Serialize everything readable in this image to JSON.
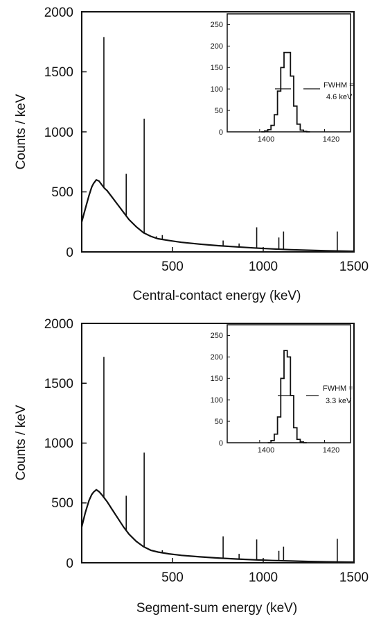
{
  "chart_data": [
    {
      "type": "line",
      "xlabel": "Central-contact energy (keV)",
      "ylabel": "Counts / keV",
      "xlim": [
        0,
        1500
      ],
      "ylim": [
        0,
        2000
      ],
      "xticks": [
        "500",
        "1000",
        "1500"
      ],
      "xtick_values": [
        500,
        1000,
        1500
      ],
      "yticks": [
        "0",
        "500",
        "1000",
        "1500",
        "2000"
      ],
      "ytick_values": [
        0,
        500,
        1000,
        1500,
        2000
      ],
      "continuum": {
        "x": [
          0,
          20,
          40,
          55,
          65,
          80,
          95,
          110,
          125,
          140,
          170,
          200,
          230,
          260,
          300,
          340,
          380,
          420,
          480,
          550,
          650,
          750,
          850,
          950,
          1050,
          1150,
          1250,
          1350,
          1450,
          1500
        ],
        "y": [
          250,
          360,
          470,
          540,
          570,
          600,
          590,
          560,
          530,
          510,
          450,
          390,
          330,
          270,
          210,
          160,
          130,
          110,
          95,
          80,
          65,
          52,
          42,
          33,
          25,
          18,
          14,
          10,
          7,
          5
        ]
      },
      "peaks": {
        "x": [
          122,
          245,
          344,
          411,
          444,
          779,
          867,
          964,
          1086,
          1112,
          1408
        ],
        "y": [
          1790,
          650,
          1110,
          130,
          140,
          95,
          70,
          205,
          120,
          170,
          170
        ]
      },
      "inset": {
        "xlim": [
          1390,
          1428
        ],
        "ylim": [
          0,
          275
        ],
        "xticks": [
          "1400",
          "1420"
        ],
        "xtick_values": [
          1400,
          1420
        ],
        "yticks": [
          "0",
          "50",
          "100",
          "150",
          "200",
          "250"
        ],
        "ytick_values": [
          0,
          50,
          100,
          150,
          200,
          250
        ],
        "x": [
          1401,
          1402,
          1403,
          1404,
          1405,
          1406,
          1407,
          1408,
          1409,
          1410,
          1411,
          1412,
          1413,
          1414,
          1415
        ],
        "y": [
          0,
          2,
          5,
          15,
          40,
          95,
          150,
          185,
          185,
          130,
          60,
          18,
          4,
          1,
          0
        ],
        "fwhm_label": [
          "FWHM =",
          "4.6 keV"
        ]
      }
    },
    {
      "type": "line",
      "xlabel": "Segment-sum energy (keV)",
      "ylabel": "Counts / keV",
      "xlim": [
        0,
        1500
      ],
      "ylim": [
        0,
        2000
      ],
      "xticks": [
        "500",
        "1000",
        "1500"
      ],
      "xtick_values": [
        500,
        1000,
        1500
      ],
      "yticks": [
        "0",
        "500",
        "1000",
        "1500",
        "2000"
      ],
      "ytick_values": [
        0,
        500,
        1000,
        1500,
        2000
      ],
      "continuum": {
        "x": [
          0,
          20,
          40,
          55,
          65,
          80,
          95,
          110,
          125,
          140,
          170,
          200,
          230,
          260,
          300,
          340,
          380,
          420,
          480,
          550,
          650,
          750,
          850,
          950,
          1050,
          1150,
          1250,
          1350,
          1450,
          1500
        ],
        "y": [
          300,
          420,
          520,
          570,
          590,
          610,
          595,
          570,
          540,
          510,
          440,
          370,
          300,
          240,
          180,
          135,
          105,
          90,
          75,
          62,
          50,
          40,
          32,
          25,
          19,
          15,
          11,
          8,
          6,
          5
        ]
      },
      "peaks": {
        "x": [
          122,
          245,
          344,
          411,
          444,
          779,
          867,
          964,
          1086,
          1112,
          1408
        ],
        "y": [
          1720,
          560,
          920,
          90,
          105,
          220,
          75,
          195,
          100,
          135,
          200
        ]
      },
      "inset": {
        "xlim": [
          1390,
          1428
        ],
        "ylim": [
          0,
          275
        ],
        "xticks": [
          "1400",
          "1420"
        ],
        "xtick_values": [
          1400,
          1420
        ],
        "yticks": [
          "0",
          "50",
          "100",
          "150",
          "200",
          "250"
        ],
        "ytick_values": [
          0,
          50,
          100,
          150,
          200,
          250
        ],
        "x": [
          1403,
          1404,
          1405,
          1406,
          1407,
          1408,
          1409,
          1410,
          1411,
          1412,
          1413,
          1414
        ],
        "y": [
          0,
          5,
          20,
          60,
          150,
          215,
          200,
          110,
          35,
          8,
          2,
          0
        ],
        "fwhm_label": [
          "FWHM =",
          "3.3 keV"
        ]
      }
    }
  ]
}
